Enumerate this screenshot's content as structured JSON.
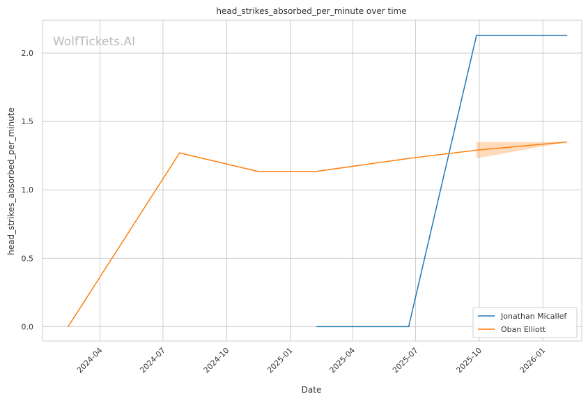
{
  "chart_data": {
    "type": "line",
    "title": "head_strikes_absorbed_per_minute over time",
    "xlabel": "Date",
    "ylabel": "head_strikes_absorbed_per_minute",
    "watermark": "WolfTickets.AI",
    "xlim": [
      "2024-01-09",
      "2026-02-26"
    ],
    "ylim": [
      -0.105,
      2.24
    ],
    "grid": true,
    "legend_position": "bottom-right",
    "x_ticks": [
      "2024-04",
      "2024-07",
      "2024-10",
      "2025-01",
      "2025-04",
      "2025-07",
      "2025-10",
      "2026-01"
    ],
    "y_ticks": [
      "0.0",
      "0.5",
      "1.0",
      "1.5",
      "2.0"
    ],
    "series": [
      {
        "name": "Jonathan Micallef",
        "color": "#1f77b4",
        "x": [
          "2025-02-08",
          "2025-06-21",
          "2025-09-27",
          "2026-02-05"
        ],
        "y": [
          0.0,
          0.0,
          2.13,
          2.13
        ]
      },
      {
        "name": "Oban Elliott",
        "color": "#ff7f0e",
        "x": [
          "2024-02-15",
          "2024-07-25",
          "2024-11-15",
          "2025-02-08",
          "2025-06-21",
          "2025-09-27",
          "2026-02-05"
        ],
        "y": [
          0.0,
          1.27,
          1.135,
          1.135,
          1.23,
          1.29,
          1.35
        ],
        "band": {
          "x": [
            "2025-09-27",
            "2026-02-05"
          ],
          "lower": [
            1.23,
            1.35
          ],
          "upper": [
            1.35,
            1.35
          ]
        }
      }
    ]
  }
}
